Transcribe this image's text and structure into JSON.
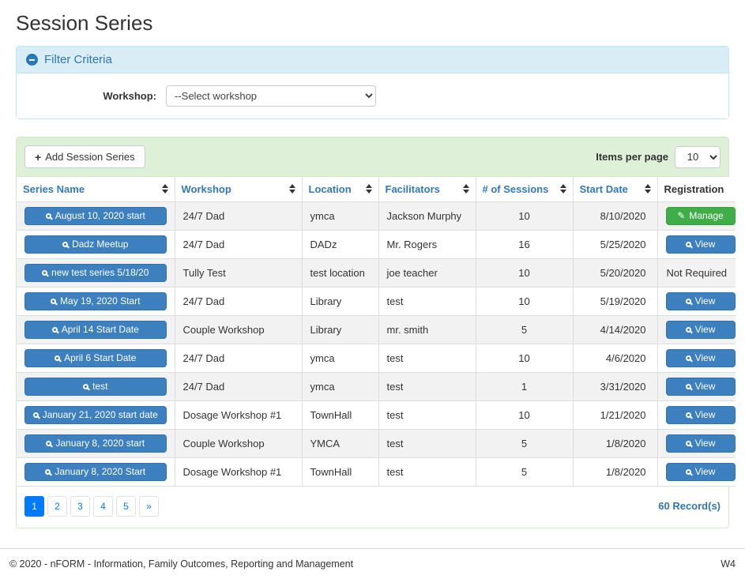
{
  "page": {
    "title": "Session Series"
  },
  "filter": {
    "title": "Filter Criteria",
    "collapse_icon": "minus-circle",
    "workshop_label": "Workshop:",
    "workshop_selected": "--Select workshop"
  },
  "toolbar": {
    "add_button_label": "Add Session Series",
    "add_button_icon": "+",
    "items_per_page_label": "Items per page",
    "items_per_page_value": "10"
  },
  "table": {
    "columns": [
      {
        "label": "Series Name",
        "sortable": true
      },
      {
        "label": "Workshop",
        "sortable": true
      },
      {
        "label": "Location",
        "sortable": true
      },
      {
        "label": "Facilitators",
        "sortable": true
      },
      {
        "label": "# of Sessions",
        "sortable": true
      },
      {
        "label": "Start Date",
        "sortable": true
      },
      {
        "label": "Registration",
        "sortable": false
      }
    ],
    "rows": [
      {
        "series_name": "August 10, 2020 start",
        "workshop": "24/7 Dad",
        "location": "ymca",
        "facilitators": "Jackson Murphy",
        "sessions": "10",
        "start_date": "8/10/2020",
        "registration": {
          "type": "manage",
          "label": "Manage"
        }
      },
      {
        "series_name": "Dadz Meetup",
        "workshop": "24/7 Dad",
        "location": "DADz",
        "facilitators": "Mr. Rogers",
        "sessions": "16",
        "start_date": "5/25/2020",
        "registration": {
          "type": "view",
          "label": "View"
        }
      },
      {
        "series_name": "new test series 5/18/20",
        "workshop": "Tully Test",
        "location": "test location",
        "facilitators": "joe teacher",
        "sessions": "10",
        "start_date": "5/20/2020",
        "registration": {
          "type": "text",
          "label": "Not Required"
        }
      },
      {
        "series_name": "May 19, 2020 Start",
        "workshop": "24/7 Dad",
        "location": "Library",
        "facilitators": "test",
        "sessions": "10",
        "start_date": "5/19/2020",
        "registration": {
          "type": "view",
          "label": "View"
        }
      },
      {
        "series_name": "April 14 Start Date",
        "workshop": "Couple Workshop",
        "location": "Library",
        "facilitators": "mr. smith",
        "sessions": "5",
        "start_date": "4/14/2020",
        "registration": {
          "type": "view",
          "label": "View"
        }
      },
      {
        "series_name": "April 6 Start Date",
        "workshop": "24/7 Dad",
        "location": "ymca",
        "facilitators": "test",
        "sessions": "10",
        "start_date": "4/6/2020",
        "registration": {
          "type": "view",
          "label": "View"
        }
      },
      {
        "series_name": "test",
        "workshop": "24/7 Dad",
        "location": "ymca",
        "facilitators": "test",
        "sessions": "1",
        "start_date": "3/31/2020",
        "registration": {
          "type": "view",
          "label": "View"
        }
      },
      {
        "series_name": "January 21, 2020 start date",
        "workshop": "Dosage Workshop #1",
        "location": "TownHall",
        "facilitators": "test",
        "sessions": "10",
        "start_date": "1/21/2020",
        "registration": {
          "type": "view",
          "label": "View"
        }
      },
      {
        "series_name": "January 8, 2020 start",
        "workshop": "Couple Workshop",
        "location": "YMCA",
        "facilitators": "test",
        "sessions": "5",
        "start_date": "1/8/2020",
        "registration": {
          "type": "view",
          "label": "View"
        }
      },
      {
        "series_name": "January 8, 2020 Start",
        "workshop": "Dosage Workshop #1",
        "location": "TownHall",
        "facilitators": "test",
        "sessions": "5",
        "start_date": "1/8/2020",
        "registration": {
          "type": "view",
          "label": "View"
        }
      }
    ]
  },
  "pagination": {
    "pages": [
      "1",
      "2",
      "3",
      "4",
      "5"
    ],
    "next_label": "»",
    "active_page": "1",
    "record_count": "60 Record(s)"
  },
  "footer": {
    "copyright": "© 2020 - nFORM - Information, Family Outcomes, Reporting and Management",
    "version": "W4"
  },
  "colors": {
    "filter_heading_bg": "#d9edf7",
    "filter_border": "#bce8f1",
    "filter_text": "#3076b5",
    "panel_heading_bg": "#dff0d8",
    "panel_border": "#d6e9c6",
    "primary_button": "#3c80bf",
    "manage_button": "#3fae49",
    "pagination_active": "#007bff",
    "row_stripe": "#f2f2f2",
    "table_border": "#dddddd",
    "header_link": "#3379b8"
  }
}
